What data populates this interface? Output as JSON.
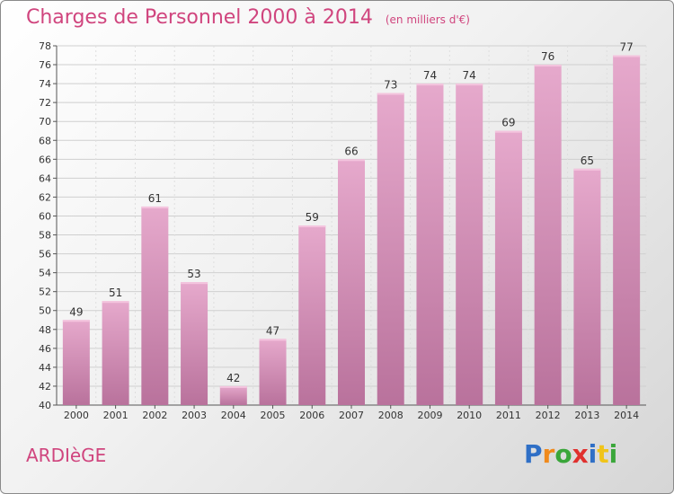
{
  "chart_data": {
    "type": "bar",
    "title": "Charges de Personnel 2000 à 2014",
    "subtitle": "(en milliers d'€)",
    "categories": [
      "2000",
      "2001",
      "2002",
      "2003",
      "2004",
      "2005",
      "2006",
      "2007",
      "2008",
      "2009",
      "2010",
      "2011",
      "2012",
      "2013",
      "2014"
    ],
    "values": [
      49,
      51,
      61,
      53,
      42,
      47,
      59,
      66,
      73,
      74,
      74,
      69,
      76,
      65,
      77
    ],
    "ylim": [
      40,
      78
    ],
    "yticks": [
      40,
      42,
      44,
      46,
      48,
      50,
      52,
      54,
      56,
      58,
      60,
      62,
      64,
      66,
      68,
      70,
      72,
      74,
      76,
      78
    ],
    "grid": true,
    "bar_color": "#d98fb8"
  },
  "commune": "ARDIèGE",
  "logo": {
    "letters": [
      "P",
      "r",
      "o",
      "x",
      "i",
      "t",
      "i"
    ],
    "colors": [
      "#2f6fc6",
      "#f08a1c",
      "#3aa63a",
      "#e0302e",
      "#2f6fc6",
      "#f0c419",
      "#3aa63a"
    ]
  }
}
